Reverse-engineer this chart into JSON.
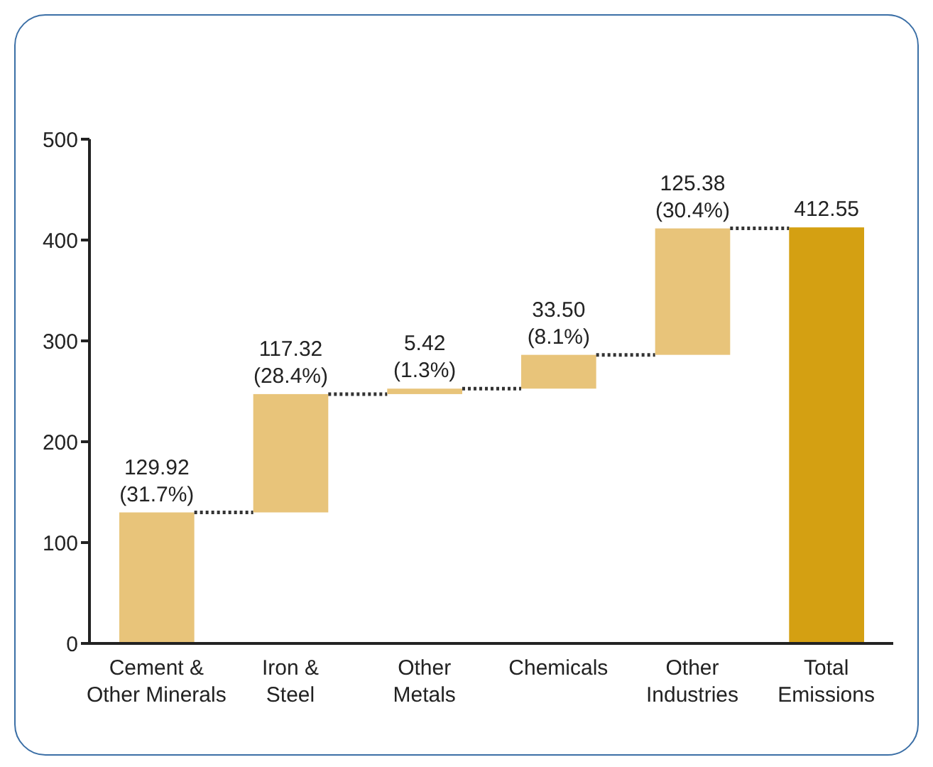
{
  "chart_data": {
    "type": "bar",
    "categories": [
      "Cement & Other Minerals",
      "Iron & Steel",
      "Other Metals",
      "Chemicals",
      "Other Industries",
      "Total Emissions"
    ],
    "values": [
      129.92,
      117.32,
      5.42,
      33.5,
      125.38,
      412.55
    ],
    "base": [
      0,
      129.92,
      247.24,
      252.66,
      286.16,
      0
    ],
    "colors": [
      "#e8c47a",
      "#e8c47a",
      "#e8c47a",
      "#e8c47a",
      "#e8c47a",
      "#d4a012"
    ],
    "value_labels": [
      "129.92 (31.7%)",
      "117.32 (28.4%)",
      "5.42 (1.3%)",
      "33.50 (8.1%)",
      "125.38 (30.4%)",
      "412.55"
    ],
    "ylim": [
      0,
      500
    ],
    "yticks": [
      0,
      100,
      200,
      300,
      400,
      500
    ],
    "grid": false,
    "legend": false
  }
}
